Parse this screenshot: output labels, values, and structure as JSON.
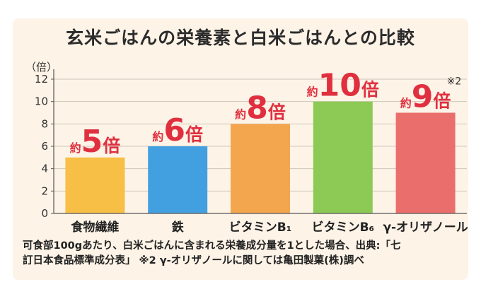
{
  "chart_data": {
    "type": "bar",
    "title": "玄米ごはんの栄養素と白米ごはんとの比較",
    "ylabel": "（倍）",
    "ylim": [
      0,
      12
    ],
    "yticks": [
      0,
      2,
      4,
      6,
      8,
      10,
      12
    ],
    "categories": [
      "食物繊維",
      "鉄",
      "ビタミンB₁",
      "ビタミンB₆",
      "γ-オリザノール"
    ],
    "values": [
      5,
      6,
      8,
      10,
      9
    ],
    "label_prefix": "約",
    "label_suffix": "倍",
    "data_labels": [
      "5",
      "6",
      "8",
      "10",
      "9"
    ],
    "annotations": [
      "",
      "",
      "",
      "",
      "※2"
    ],
    "grid": true
  },
  "colors": {
    "bars": [
      "#f7bf45",
      "#43a0e0",
      "#f4a64e",
      "#8cca55",
      "#ea6f6c"
    ],
    "label": "#e0303f",
    "grid": "#cfc6bb",
    "axis": "#555555"
  },
  "footnote": {
    "line1": "可食部100gあたり、白米ごはんに含まれる栄養成分量を1とした場合、出典:「七",
    "line2": "訂日本食品標準成分表」 ※2 γ-オリザノールに関しては亀田製菓(株)調べ"
  }
}
